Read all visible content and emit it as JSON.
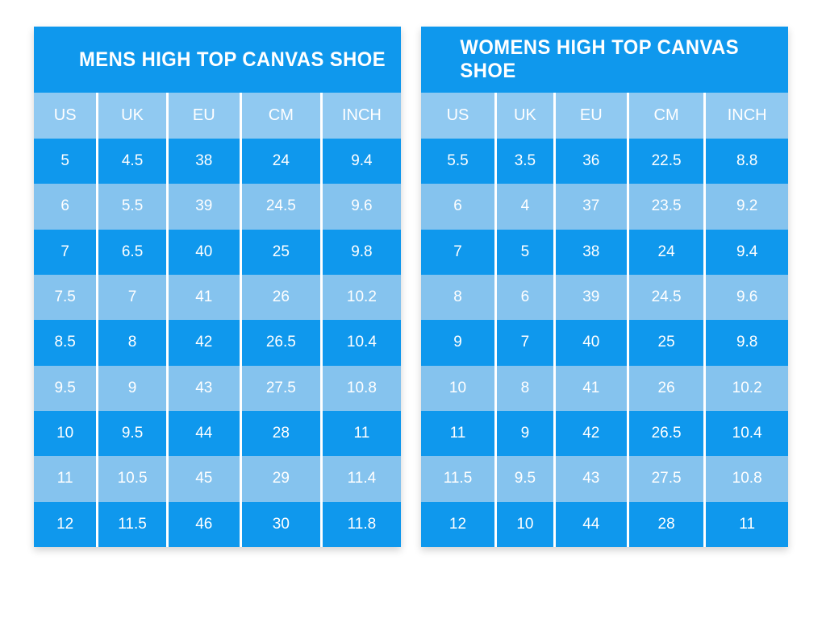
{
  "page": {
    "background": "#ffffff"
  },
  "colors": {
    "dark_blue": "#0f98ed",
    "light_blue": "#85c3ee",
    "header_blue": "#90c9f1",
    "text": "#ffffff",
    "divider": "#ffffff"
  },
  "tables": [
    {
      "id": "mens",
      "title": "MENS HIGH TOP CANVAS SHOE",
      "columns": [
        "US",
        "UK",
        "EU",
        "CM",
        "INCH"
      ],
      "rows": [
        [
          "5",
          "4.5",
          "38",
          "24",
          "9.4"
        ],
        [
          "6",
          "5.5",
          "39",
          "24.5",
          "9.6"
        ],
        [
          "7",
          "6.5",
          "40",
          "25",
          "9.8"
        ],
        [
          "7.5",
          "7",
          "41",
          "26",
          "10.2"
        ],
        [
          "8.5",
          "8",
          "42",
          "26.5",
          "10.4"
        ],
        [
          "9.5",
          "9",
          "43",
          "27.5",
          "10.8"
        ],
        [
          "10",
          "9.5",
          "44",
          "28",
          "11"
        ],
        [
          "11",
          "10.5",
          "45",
          "29",
          "11.4"
        ],
        [
          "12",
          "11.5",
          "46",
          "30",
          "11.8"
        ]
      ]
    },
    {
      "id": "womens",
      "title": "WOMENS HIGH TOP CANVAS SHOE",
      "columns": [
        "US",
        "UK",
        "EU",
        "CM",
        "INCH"
      ],
      "rows": [
        [
          "5.5",
          "3.5",
          "36",
          "22.5",
          "8.8"
        ],
        [
          "6",
          "4",
          "37",
          "23.5",
          "9.2"
        ],
        [
          "7",
          "5",
          "38",
          "24",
          "9.4"
        ],
        [
          "8",
          "6",
          "39",
          "24.5",
          "9.6"
        ],
        [
          "9",
          "7",
          "40",
          "25",
          "9.8"
        ],
        [
          "10",
          "8",
          "41",
          "26",
          "10.2"
        ],
        [
          "11",
          "9",
          "42",
          "26.5",
          "10.4"
        ],
        [
          "11.5",
          "9.5",
          "43",
          "27.5",
          "10.8"
        ],
        [
          "12",
          "10",
          "44",
          "28",
          "11"
        ]
      ]
    }
  ],
  "chart_data": [
    {
      "type": "table",
      "title": "MENS HIGH TOP CANVAS SHOE",
      "columns": [
        "US",
        "UK",
        "EU",
        "CM",
        "INCH"
      ],
      "rows": [
        [
          5,
          4.5,
          38,
          24,
          9.4
        ],
        [
          6,
          5.5,
          39,
          24.5,
          9.6
        ],
        [
          7,
          6.5,
          40,
          25,
          9.8
        ],
        [
          7.5,
          7,
          41,
          26,
          10.2
        ],
        [
          8.5,
          8,
          42,
          26.5,
          10.4
        ],
        [
          9.5,
          9,
          43,
          27.5,
          10.8
        ],
        [
          10,
          9.5,
          44,
          28,
          11
        ],
        [
          11,
          10.5,
          45,
          29,
          11.4
        ],
        [
          12,
          11.5,
          46,
          30,
          11.8
        ]
      ],
      "layout": "alternating row colors, dark blue title band, light blue header band, white column dividers"
    },
    {
      "type": "table",
      "title": "WOMENS HIGH TOP CANVAS SHOE",
      "columns": [
        "US",
        "UK",
        "EU",
        "CM",
        "INCH"
      ],
      "rows": [
        [
          5.5,
          3.5,
          36,
          22.5,
          8.8
        ],
        [
          6,
          4,
          37,
          23.5,
          9.2
        ],
        [
          7,
          5,
          38,
          24,
          9.4
        ],
        [
          8,
          6,
          39,
          24.5,
          9.6
        ],
        [
          9,
          7,
          40,
          25,
          9.8
        ],
        [
          10,
          8,
          41,
          26,
          10.2
        ],
        [
          11,
          9,
          42,
          26.5,
          10.4
        ],
        [
          11.5,
          9.5,
          43,
          27.5,
          10.8
        ],
        [
          12,
          10,
          44,
          28,
          11
        ]
      ],
      "layout": "alternating row colors, dark blue title band, light blue header band, white column dividers"
    }
  ]
}
